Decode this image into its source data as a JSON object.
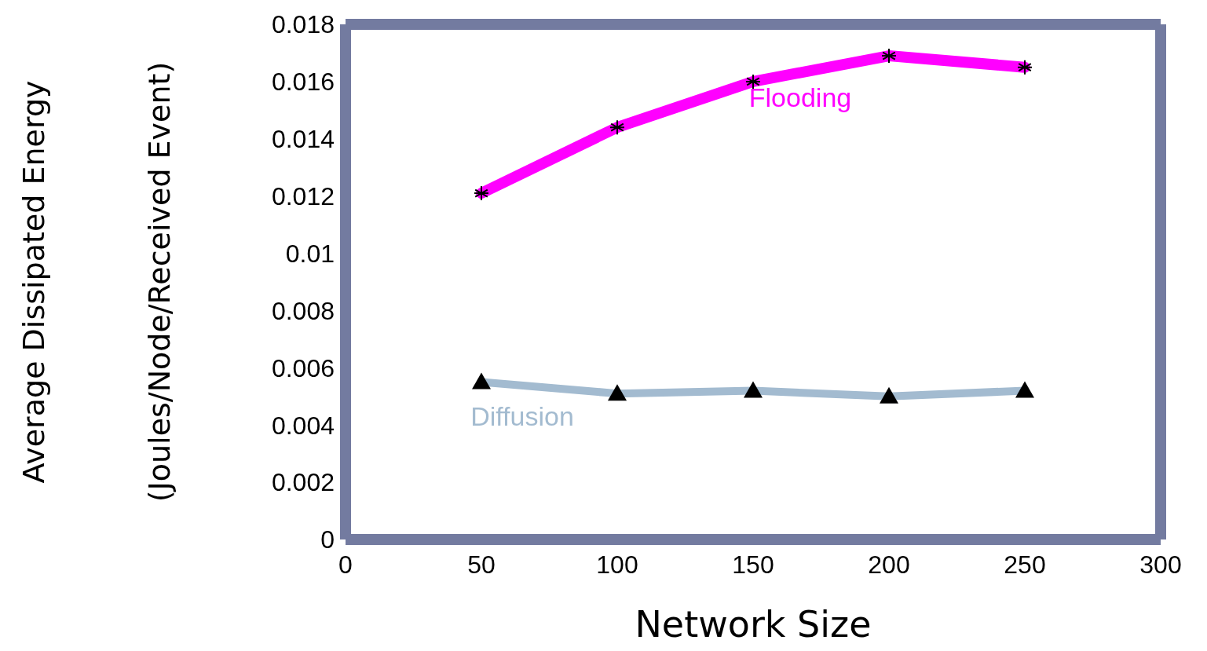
{
  "chart_data": {
    "type": "line",
    "xlabel": "Network Size",
    "ylabel": "Average Dissipated Energy\n(Joules/Node/Received Event)",
    "x": [
      50,
      100,
      150,
      200,
      250
    ],
    "series": [
      {
        "name": "Flooding",
        "color": "#ff00ff",
        "values": [
          0.0121,
          0.0144,
          0.016,
          0.0169,
          0.0165
        ],
        "marker": "cross"
      },
      {
        "name": "Diffusion",
        "color": "#a3bbd0",
        "values": [
          0.0055,
          0.0051,
          0.0052,
          0.005,
          0.0052
        ],
        "marker": "triangle"
      }
    ],
    "xlim": [
      0,
      300
    ],
    "xticks": [
      0,
      50,
      100,
      150,
      200,
      250,
      300
    ],
    "ylim": [
      0,
      0.018
    ],
    "yticks": [
      0,
      0.002,
      0.004,
      0.006,
      0.008,
      0.01,
      0.012,
      0.014,
      0.016,
      0.018
    ],
    "grid": false
  }
}
